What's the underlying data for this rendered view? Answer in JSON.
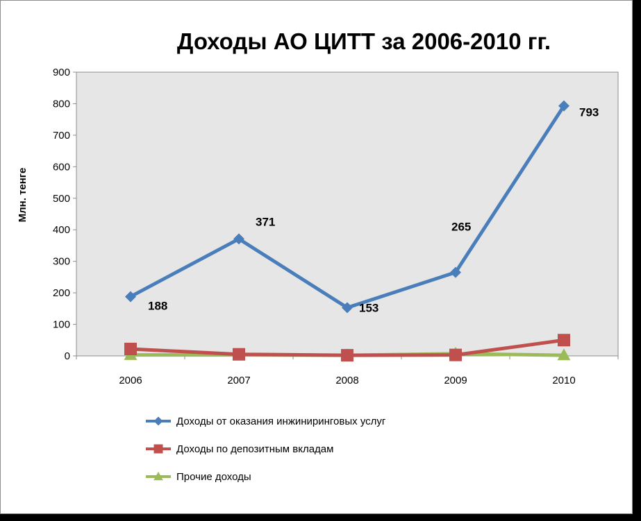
{
  "chart_data": {
    "type": "line",
    "title": "Доходы АО ЦИТТ за 2006-2010 гг.",
    "xlabel": "",
    "ylabel": "Млн. тенге",
    "categories": [
      "2006",
      "2007",
      "2008",
      "2009",
      "2010"
    ],
    "ylim": [
      0,
      900
    ],
    "yticks": [
      0,
      100,
      200,
      300,
      400,
      500,
      600,
      700,
      800,
      900
    ],
    "grid": false,
    "legend": "bottom",
    "series": [
      {
        "name": "Доходы от оказания инжиниринговых услуг",
        "values": [
          188,
          371,
          153,
          265,
          793
        ],
        "data_labels": [
          "188",
          "371",
          "153",
          "265",
          "793"
        ],
        "color": "#4a7ebb",
        "marker": "diamond"
      },
      {
        "name": "Доходы по депозитным вкладам",
        "values": [
          22,
          5,
          2,
          3,
          50
        ],
        "color": "#c0504d",
        "marker": "square"
      },
      {
        "name": "Прочие доходы",
        "values": [
          3,
          3,
          2,
          7,
          2
        ],
        "color": "#9bbb59",
        "marker": "triangle"
      }
    ],
    "plot_background": "#e6e6e6"
  }
}
